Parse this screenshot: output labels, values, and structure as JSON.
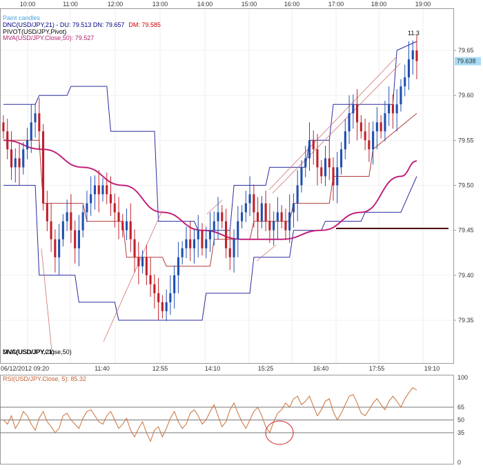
{
  "chart_data": {
    "type": "candlestick",
    "symbol": "USD/JPY",
    "legend": [
      {
        "text": "Paint candles",
        "color": "#4aa3df"
      },
      {
        "text": "DNC(USD/JPY,21) -  DU: 79.513  DN: 79.657",
        "extra": "DM: 79.585",
        "color": "#000080",
        "extra_color": "#cc0000"
      },
      {
        "text": "PIVOT(USD/JPY,Pivot)",
        "color": "#000000"
      },
      {
        "text": "MVA(USD/JPY.Close,50): 79.527",
        "color": "#b0206f"
      }
    ],
    "top_time_ticks": [
      "10:00",
      "11:00",
      "12:00",
      "13:00",
      "14:00",
      "15:00",
      "16:00",
      "17:00",
      "18:00",
      "19:00"
    ],
    "bottom_time_ticks": [
      "06/12/2012 09:20",
      "11:40",
      "12:55",
      "14:10",
      "15:25",
      "16:40",
      "17:55",
      "19:10"
    ],
    "y_ticks": [
      "79.65",
      "79.60",
      "79.55",
      "79.50",
      "79.45",
      "79.40",
      "79.35"
    ],
    "ylim": [
      79.3,
      79.7
    ],
    "current_price": "79.638",
    "annotation_top": "11.3",
    "overlap_label": "DNC(USD/JPY,21)",
    "overlap_label2": "MVA(USD/JPY.Close,50)",
    "closes": [
      79.56,
      79.54,
      79.52,
      79.53,
      79.52,
      79.54,
      79.55,
      79.57,
      79.58,
      79.56,
      79.48,
      79.46,
      79.44,
      79.42,
      79.44,
      79.46,
      79.47,
      79.45,
      79.43,
      79.45,
      79.47,
      79.48,
      79.49,
      79.5,
      79.49,
      79.5,
      79.49,
      79.48,
      79.47,
      79.46,
      79.45,
      79.46,
      79.44,
      79.42,
      79.41,
      79.42,
      79.4,
      79.39,
      79.38,
      79.37,
      79.36,
      79.37,
      79.38,
      79.4,
      79.42,
      79.43,
      79.44,
      79.43,
      79.44,
      79.45,
      79.43,
      79.44,
      79.45,
      79.46,
      79.47,
      79.46,
      79.43,
      79.42,
      79.44,
      79.46,
      79.47,
      79.48,
      79.49,
      79.47,
      79.46,
      79.48,
      79.46,
      79.45,
      79.46,
      79.47,
      79.46,
      79.45,
      79.47,
      79.48,
      79.5,
      79.52,
      79.53,
      79.55,
      79.54,
      79.52,
      79.51,
      79.53,
      79.52,
      79.5,
      79.52,
      79.54,
      79.56,
      79.58,
      79.59,
      79.57,
      79.56,
      79.55,
      79.54,
      79.56,
      79.57,
      79.56,
      79.58,
      79.59,
      79.58,
      79.59,
      79.61,
      79.62,
      79.64,
      79.65,
      79.638
    ],
    "mva50": {
      "x": [
        0,
        10,
        20,
        30,
        40,
        50,
        60,
        70,
        80,
        90,
        100,
        104
      ],
      "y": [
        79.55,
        79.54,
        79.52,
        79.5,
        79.47,
        79.45,
        79.44,
        79.44,
        79.45,
        79.47,
        79.51,
        79.527
      ]
    },
    "dnc_upper": {
      "x": [
        0,
        8,
        9,
        16,
        17,
        26,
        27,
        38,
        39,
        48,
        49,
        57,
        58,
        66,
        67,
        76,
        77,
        82,
        83,
        98,
        99,
        104
      ],
      "y": [
        79.59,
        79.59,
        79.6,
        79.6,
        79.61,
        79.61,
        79.56,
        79.56,
        79.46,
        79.46,
        79.45,
        79.45,
        79.5,
        79.5,
        79.52,
        79.52,
        79.55,
        79.55,
        79.59,
        79.59,
        79.65,
        79.66
      ]
    },
    "dnc_lower": {
      "x": [
        0,
        8,
        9,
        18,
        19,
        28,
        29,
        38,
        39,
        50,
        51,
        62,
        63,
        72,
        73,
        80,
        81,
        90,
        91,
        100,
        101,
        104
      ],
      "y": [
        79.5,
        79.5,
        79.4,
        79.4,
        79.37,
        79.37,
        79.35,
        79.35,
        79.35,
        79.35,
        79.38,
        79.38,
        79.42,
        79.42,
        79.45,
        79.45,
        79.46,
        79.46,
        79.47,
        79.47,
        79.48,
        79.51
      ]
    },
    "dnc_mid": {
      "x": [
        0,
        9,
        10,
        20,
        21,
        30,
        31,
        40,
        41,
        52,
        53,
        62,
        63,
        72,
        73,
        82,
        83,
        92,
        93,
        104
      ],
      "y": [
        79.55,
        79.55,
        79.48,
        79.48,
        79.46,
        79.46,
        79.42,
        79.42,
        79.41,
        79.41,
        79.44,
        79.44,
        79.46,
        79.46,
        79.48,
        79.48,
        79.51,
        79.51,
        79.54,
        79.58
      ]
    },
    "pivot_level": 79.452,
    "rsi": {
      "label": "RSI(USD/JPY.Close, 5): 85.32",
      "ticks": [
        "100",
        "65",
        "50",
        "35",
        "0"
      ],
      "levels": [
        65,
        50,
        35
      ],
      "ylim": [
        0,
        100
      ],
      "values": [
        50,
        45,
        55,
        40,
        48,
        60,
        55,
        45,
        38,
        52,
        60,
        48,
        42,
        35,
        40,
        55,
        58,
        50,
        45,
        40,
        52,
        60,
        62,
        55,
        48,
        45,
        55,
        60,
        50,
        40,
        45,
        52,
        38,
        30,
        40,
        48,
        35,
        25,
        38,
        42,
        30,
        40,
        52,
        60,
        48,
        40,
        45,
        58,
        62,
        55,
        45,
        50,
        60,
        68,
        55,
        42,
        48,
        62,
        70,
        58,
        48,
        40,
        50,
        60,
        65,
        55,
        42,
        35,
        48,
        58,
        62,
        70,
        65,
        75,
        78,
        68,
        72,
        78,
        66,
        55,
        62,
        72,
        75,
        60,
        50,
        58,
        68,
        78,
        80,
        70,
        58,
        55,
        62,
        70,
        75,
        68,
        62,
        72,
        78,
        72,
        65,
        75,
        82,
        88,
        85.32
      ]
    }
  }
}
